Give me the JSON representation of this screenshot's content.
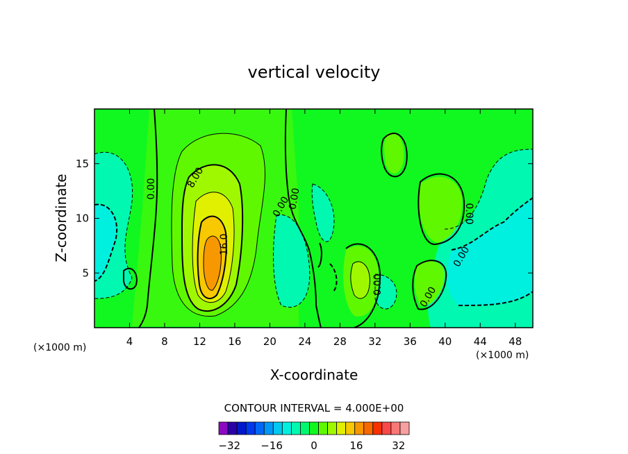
{
  "chart_data": {
    "type": "heatmap",
    "title": "vertical velocity",
    "xlabel": "X-coordinate",
    "ylabel": "Z-coordinate",
    "x_unit": "(×1000 m)",
    "xlim": [
      0,
      50
    ],
    "ylim": [
      0,
      20
    ],
    "x_ticks": [
      4,
      8,
      12,
      16,
      20,
      24,
      28,
      32,
      36,
      40,
      44,
      48
    ],
    "y_ticks": [
      5,
      10,
      15
    ],
    "contour_interval_text": "CONTOUR INTERVAL = 4.000E+00",
    "contour_interval": 4,
    "colorbar": {
      "min": -36,
      "max": 36,
      "tick_values": [
        -32,
        -16,
        0,
        16,
        32
      ],
      "colors": [
        "#8b0ac0",
        "#2a00a8",
        "#0018cc",
        "#0038f0",
        "#0068f8",
        "#0098f8",
        "#00c8f0",
        "#00f0e0",
        "#00f8b0",
        "#00f870",
        "#10f820",
        "#60f800",
        "#a0f800",
        "#e0f000",
        "#f8c800",
        "#f89800",
        "#f86800",
        "#f83000",
        "#f84848",
        "#f87878",
        "#f8a0a0"
      ]
    },
    "contour_labels": [
      "0.00",
      "8.00",
      "16.0",
      "0.00",
      "0.00",
      "0.00",
      "0.00",
      "0.00",
      "0.00"
    ],
    "features": [
      {
        "name": "updraft core",
        "x": 13.5,
        "z": 6.5,
        "value": 24
      },
      {
        "name": "updraft",
        "x": 30,
        "z": 5,
        "value": 6
      },
      {
        "name": "downdraft right",
        "x": 45,
        "z": 6,
        "value": -8
      },
      {
        "name": "downdraft left",
        "x": 1.5,
        "z": 9,
        "value": -6
      }
    ]
  }
}
